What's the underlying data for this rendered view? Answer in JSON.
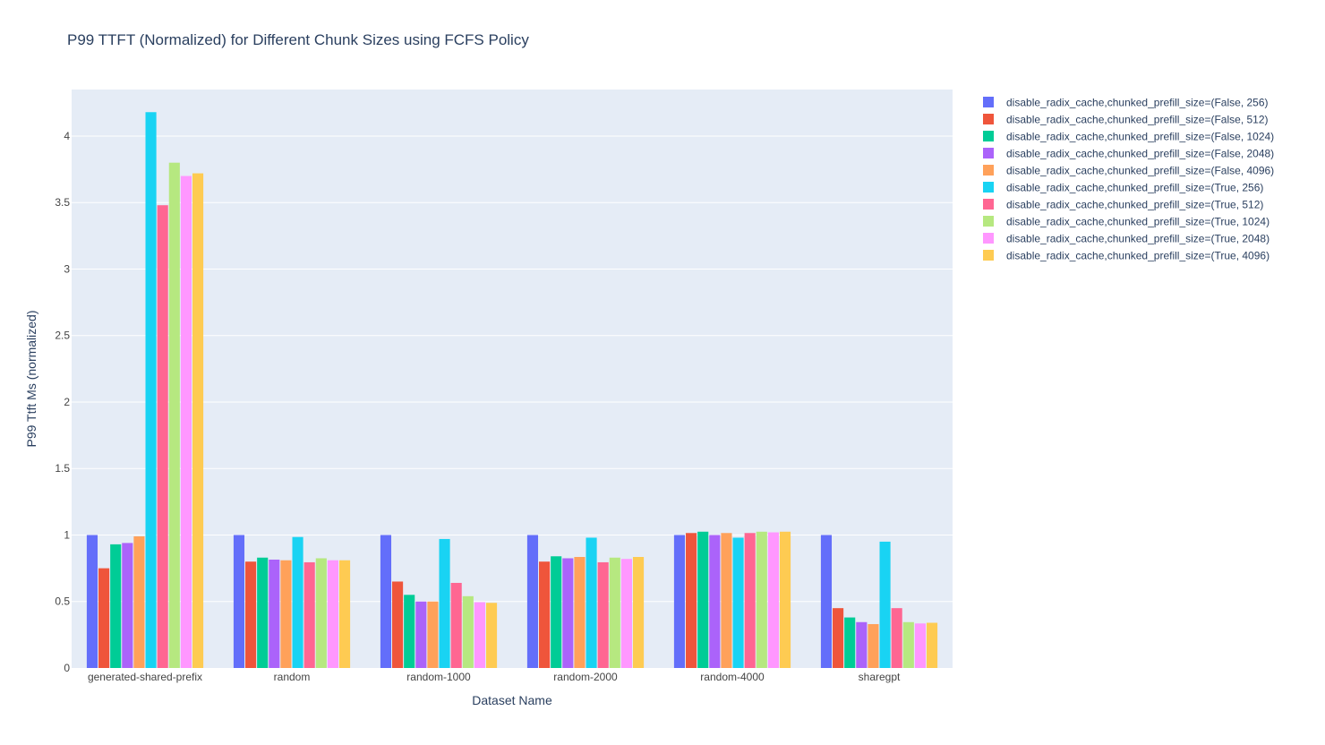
{
  "colors": {
    "background": "#ffffff",
    "plot_background": "#e5ecf6",
    "grid": "#ffffff",
    "text": "#2a3f5f",
    "tick_text": "#444444"
  },
  "chart_data": {
    "type": "bar",
    "title": "P99 TTFT (Normalized) for Different Chunk Sizes using FCFS Policy",
    "xlabel": "Dataset Name",
    "ylabel": "P99 Ttft Ms (normalized)",
    "ylim": [
      0,
      4.35
    ],
    "yticks": [
      0,
      0.5,
      1,
      1.5,
      2,
      2.5,
      3,
      3.5,
      4
    ],
    "ytick_labels": [
      "0",
      "0.5",
      "1",
      "1.5",
      "2",
      "2.5",
      "3",
      "3.5",
      "4"
    ],
    "grid": true,
    "legend_position": "top-right, outside plot",
    "categories": [
      "generated-shared-prefix",
      "random",
      "random-1000",
      "random-2000",
      "random-4000",
      "sharegpt"
    ],
    "series": [
      {
        "name": "disable_radix_cache,chunked_prefill_size=(False, 256)",
        "color": "#636efa",
        "values": [
          1.0,
          1.0,
          1.0,
          1.0,
          1.0,
          1.0
        ]
      },
      {
        "name": "disable_radix_cache,chunked_prefill_size=(False, 512)",
        "color": "#ef553b",
        "values": [
          0.75,
          0.8,
          0.65,
          0.8,
          1.015,
          0.45
        ]
      },
      {
        "name": "disable_radix_cache,chunked_prefill_size=(False, 1024)",
        "color": "#00cc96",
        "values": [
          0.93,
          0.83,
          0.55,
          0.84,
          1.025,
          0.38
        ]
      },
      {
        "name": "disable_radix_cache,chunked_prefill_size=(False, 2048)",
        "color": "#ab63fa",
        "values": [
          0.94,
          0.815,
          0.5,
          0.825,
          1.0,
          0.345
        ]
      },
      {
        "name": "disable_radix_cache,chunked_prefill_size=(False, 4096)",
        "color": "#ffa15a",
        "values": [
          0.99,
          0.81,
          0.5,
          0.835,
          1.015,
          0.33
        ]
      },
      {
        "name": "disable_radix_cache,chunked_prefill_size=(True, 256)",
        "color": "#19d3f3",
        "values": [
          4.18,
          0.985,
          0.97,
          0.98,
          0.98,
          0.95
        ]
      },
      {
        "name": "disable_radix_cache,chunked_prefill_size=(True, 512)",
        "color": "#ff6692",
        "values": [
          3.48,
          0.795,
          0.64,
          0.795,
          1.015,
          0.45
        ]
      },
      {
        "name": "disable_radix_cache,chunked_prefill_size=(True, 1024)",
        "color": "#b6e880",
        "values": [
          3.8,
          0.825,
          0.54,
          0.83,
          1.025,
          0.345
        ]
      },
      {
        "name": "disable_radix_cache,chunked_prefill_size=(True, 2048)",
        "color": "#ff97ff",
        "values": [
          3.7,
          0.81,
          0.495,
          0.82,
          1.02,
          0.335
        ]
      },
      {
        "name": "disable_radix_cache,chunked_prefill_size=(True, 4096)",
        "color": "#fecb52",
        "values": [
          3.72,
          0.81,
          0.49,
          0.835,
          1.025,
          0.34
        ]
      }
    ]
  }
}
